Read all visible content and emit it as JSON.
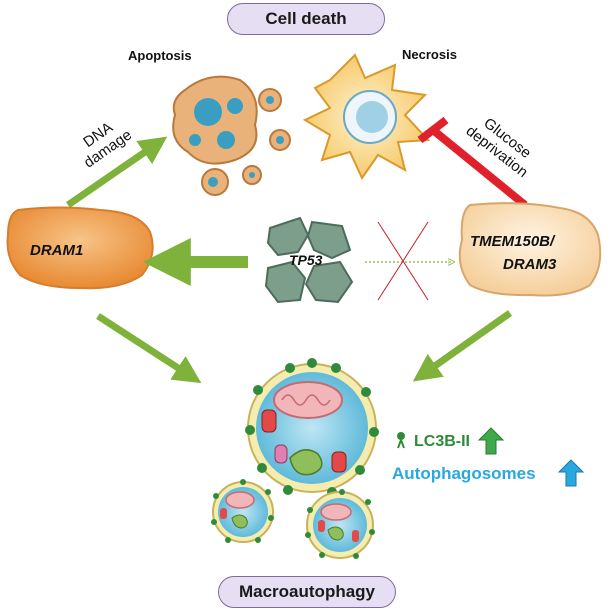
{
  "title_top": "Cell death",
  "title_bottom": "Macroautophagy",
  "apoptosis_label": "Apoptosis",
  "necrosis_label": "Necrosis",
  "dna_damage_label": "DNA damage",
  "glucose_label": "Glucose deprivation",
  "dram1_label": "DRAM1",
  "tp53_label": "TP53",
  "tmem_label_line1": "TMEM150B/",
  "tmem_label_line2": "DRAM3",
  "lc3_label": "LC3B-II",
  "autophagosome_label": "Autophagosomes",
  "colors": {
    "arrow_green": "#7fb23a",
    "inhibit_red": "#e0202a",
    "cross_red": "#c8202a",
    "lc3_green": "#2e8b3a",
    "autophagosome_blue": "#29a8e0",
    "pill_fill": "#e6def2",
    "dram1_orange": "#f2a45a",
    "tmem_peach": "#fbe3c2",
    "tp53_green": "#7d9e8a"
  }
}
